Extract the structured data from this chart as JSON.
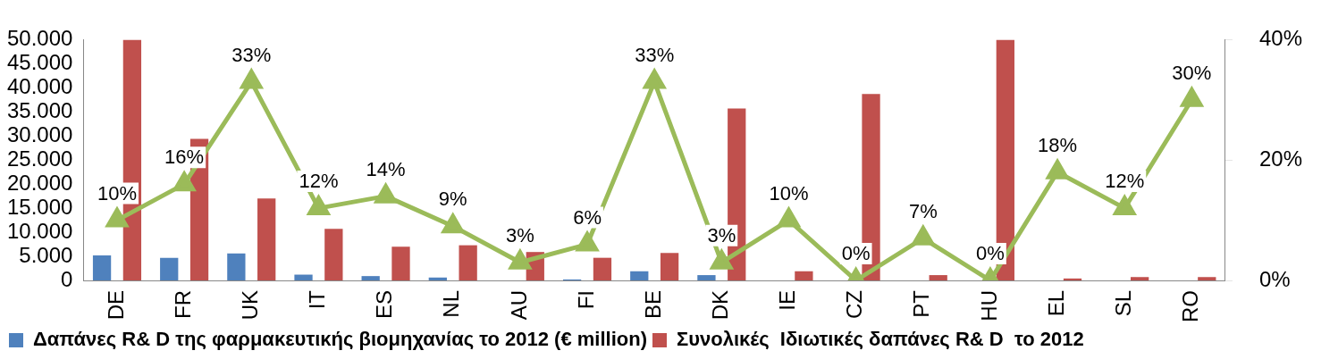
{
  "chart_data": {
    "type": "bar",
    "categories": [
      "DE",
      "FR",
      "UK",
      "IT",
      "ES",
      "NL",
      "AU",
      "FI",
      "BE",
      "DK",
      "IE",
      "CZ",
      "PT",
      "HU",
      "EL",
      "SL",
      "RO"
    ],
    "series": [
      {
        "name": "Δαπάνες R& D της φαρμακευτικής βιομηχανίας το 2012 (€ million)",
        "color": "#4f81bd",
        "values": [
          5200,
          4700,
          5600,
          1200,
          900,
          600,
          null,
          200,
          1900,
          1100,
          0,
          0,
          0,
          0,
          0,
          0,
          null
        ]
      },
      {
        "name": "Συνολικές  Ιδιωτικές δαπάνες R& D  το 2012",
        "color": "#c0504d",
        "values": [
          50000,
          29400,
          17000,
          10700,
          7000,
          7300,
          5900,
          4700,
          5700,
          35700,
          1900,
          38700,
          1100,
          50000,
          400,
          700,
          700
        ]
      },
      {
        "type": "line",
        "axis": "y2",
        "color": "#9bbb59",
        "marker": "triangle",
        "data_labels": true,
        "value_labels": [
          "10%",
          "16%",
          "33%",
          "12%",
          "14%",
          "9%",
          "3%",
          "6%",
          "33%",
          "3%",
          "10%",
          "0%",
          "7%",
          "0%",
          "18%",
          "12%",
          "30%"
        ],
        "values": [
          10,
          16,
          33,
          12,
          14,
          9,
          3,
          6,
          33,
          3,
          10,
          0,
          7,
          0,
          18,
          12,
          30
        ]
      }
    ],
    "ylim": [
      0,
      50000
    ],
    "yticks": [
      {
        "value": 0,
        "label": "0"
      },
      {
        "value": 5000,
        "label": "5.000"
      },
      {
        "value": 10000,
        "label": "10.000"
      },
      {
        "value": 15000,
        "label": "15.000"
      },
      {
        "value": 20000,
        "label": "20.000"
      },
      {
        "value": 25000,
        "label": "25.000"
      },
      {
        "value": 30000,
        "label": "30.000"
      },
      {
        "value": 35000,
        "label": "35.000"
      },
      {
        "value": 40000,
        "label": "40.000"
      },
      {
        "value": 45000,
        "label": "45.000"
      },
      {
        "value": 50000,
        "label": "50.000"
      }
    ],
    "y2lim": [
      0,
      40
    ],
    "y2ticks": [
      {
        "value": 0,
        "label": "0%"
      },
      {
        "value": 20,
        "label": "20%"
      },
      {
        "value": 40,
        "label": "40%"
      }
    ],
    "grid": false,
    "legend": "bottom"
  }
}
